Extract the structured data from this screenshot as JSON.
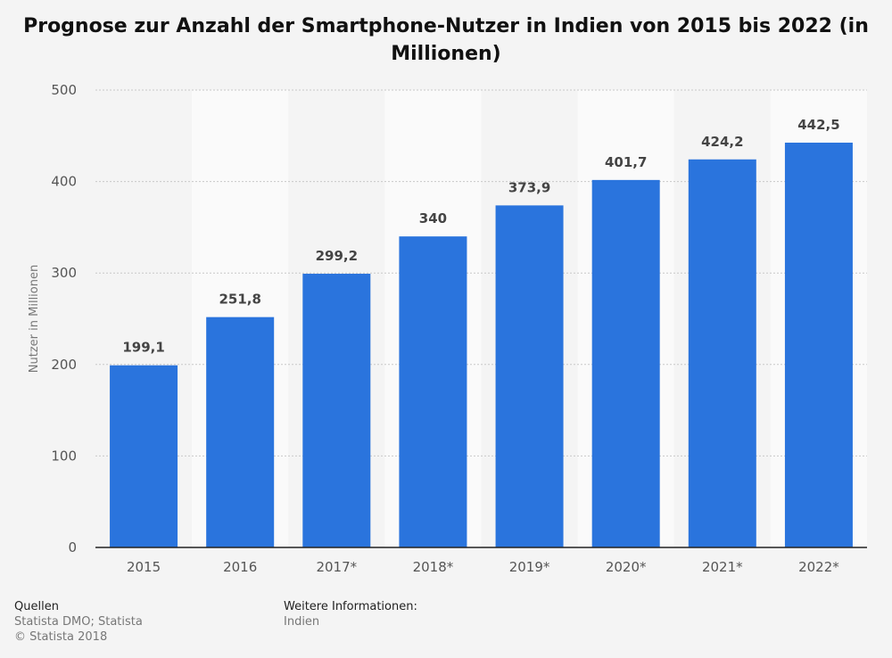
{
  "title_lines": [
    "Prognose zur Anzahl der Smartphone-Nutzer in Indien von 2015 bis 2022 (in",
    "Millionen)"
  ],
  "colors": {
    "bar": "#2a74dd",
    "axis": "#222222",
    "grid": "#c8c8c8",
    "band": "#fafafa",
    "background": "#f4f4f4",
    "label": "#444444",
    "tick": "#555555"
  },
  "chart_data": {
    "type": "bar",
    "title": "Prognose zur Anzahl der Smartphone-Nutzer in Indien von 2015 bis 2022 (in Millionen)",
    "categories": [
      "2015",
      "2016",
      "2017*",
      "2018*",
      "2019*",
      "2020*",
      "2021*",
      "2022*"
    ],
    "values": [
      199.1,
      251.8,
      299.2,
      340,
      373.9,
      401.7,
      424.2,
      442.5
    ],
    "value_labels": [
      "199,1",
      "251,8",
      "299,2",
      "340",
      "373,9",
      "401,7",
      "424,2",
      "442,5"
    ],
    "xlabel": "",
    "ylabel": "Nutzer in Millionen",
    "ylim": [
      0,
      500
    ],
    "yticks": [
      0,
      100,
      200,
      300,
      400,
      500
    ],
    "grid": true,
    "legend": "none"
  },
  "footer": {
    "sources_heading": "Quellen",
    "sources_text": "Statista DMO; Statista",
    "copyright": "© Statista 2018",
    "more_info_heading": "Weitere Informationen:",
    "more_info_text": "Indien"
  }
}
